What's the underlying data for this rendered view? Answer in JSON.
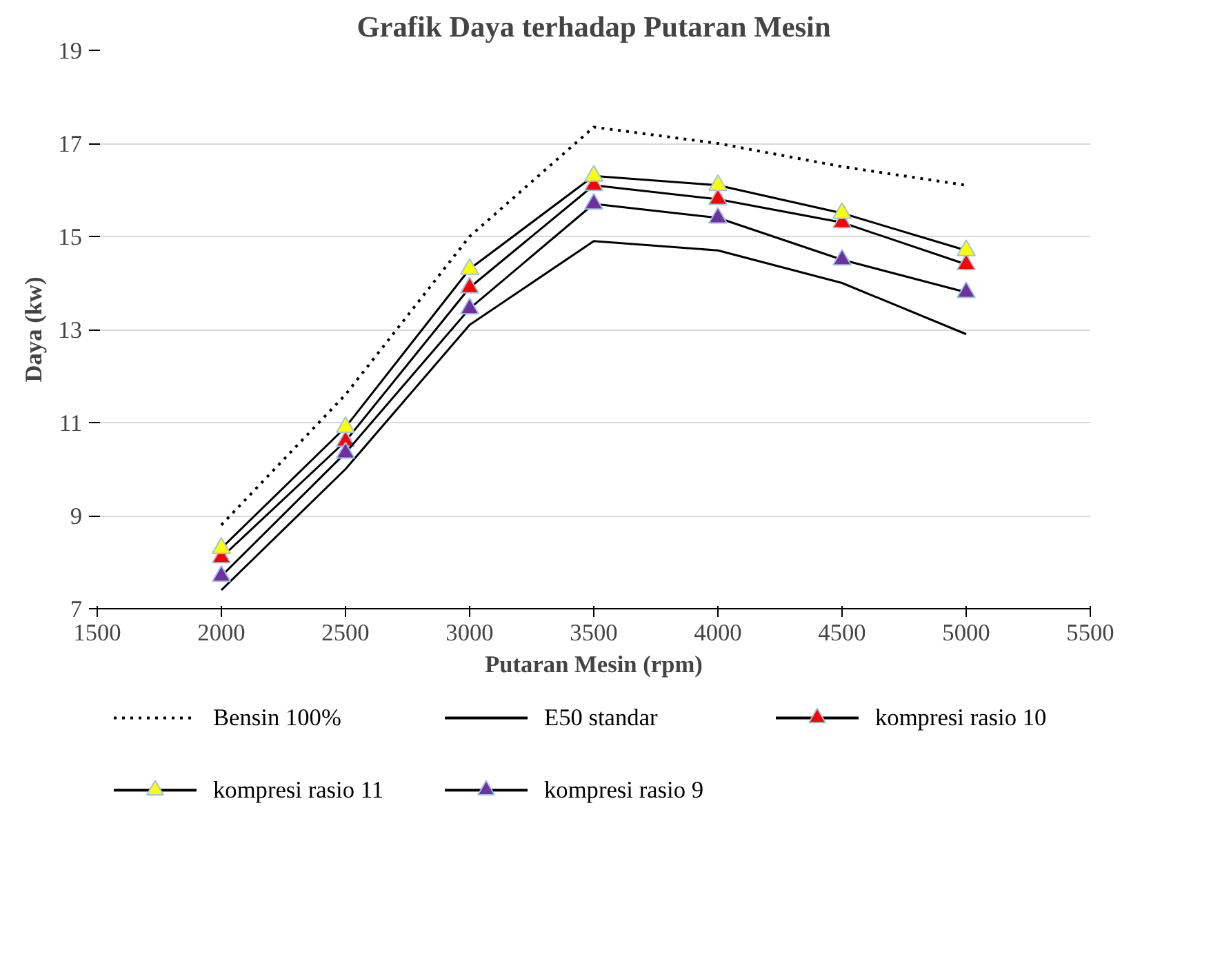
{
  "chart_data": {
    "type": "line",
    "title": "Grafik Daya terhadap Putaran Mesin",
    "xlabel": "Putaran Mesin (rpm)",
    "ylabel": "Daya (kw)",
    "x": [
      2000,
      2500,
      3000,
      3500,
      4000,
      4500,
      5000
    ],
    "xlim": [
      1500,
      5500
    ],
    "xticks": [
      1500,
      2000,
      2500,
      3000,
      3500,
      4000,
      4500,
      5000,
      5500
    ],
    "ylim": [
      7,
      19
    ],
    "yticks": [
      7,
      9,
      11,
      13,
      15,
      17,
      19
    ],
    "grid": "y",
    "legend": "bottom",
    "series": [
      {
        "name": "Bensin 100%",
        "color": "#000000",
        "line_style": "dotted",
        "marker": "none",
        "values": [
          8.8,
          11.6,
          15.0,
          17.35,
          17.0,
          16.5,
          16.1
        ]
      },
      {
        "name": "E50 standar",
        "color": "#000000",
        "line_style": "solid",
        "marker": "none",
        "values": [
          7.4,
          10.0,
          13.1,
          14.9,
          14.7,
          14.0,
          12.9
        ]
      },
      {
        "name": "kompresi rasio 10",
        "color": "#ff0000",
        "line_style": "solid",
        "marker": "triangle",
        "values": [
          8.1,
          10.6,
          13.9,
          16.1,
          15.8,
          15.3,
          14.4
        ]
      },
      {
        "name": "kompresi rasio 11",
        "color": "#ffff00",
        "line_style": "solid",
        "marker": "triangle",
        "values": [
          8.3,
          10.9,
          14.3,
          16.3,
          16.1,
          15.5,
          14.7
        ]
      },
      {
        "name": "kompresi rasio 9",
        "color": "#7030a0",
        "line_style": "solid",
        "marker": "triangle",
        "values": [
          7.7,
          10.35,
          13.45,
          15.7,
          15.4,
          14.5,
          13.8
        ]
      }
    ]
  }
}
